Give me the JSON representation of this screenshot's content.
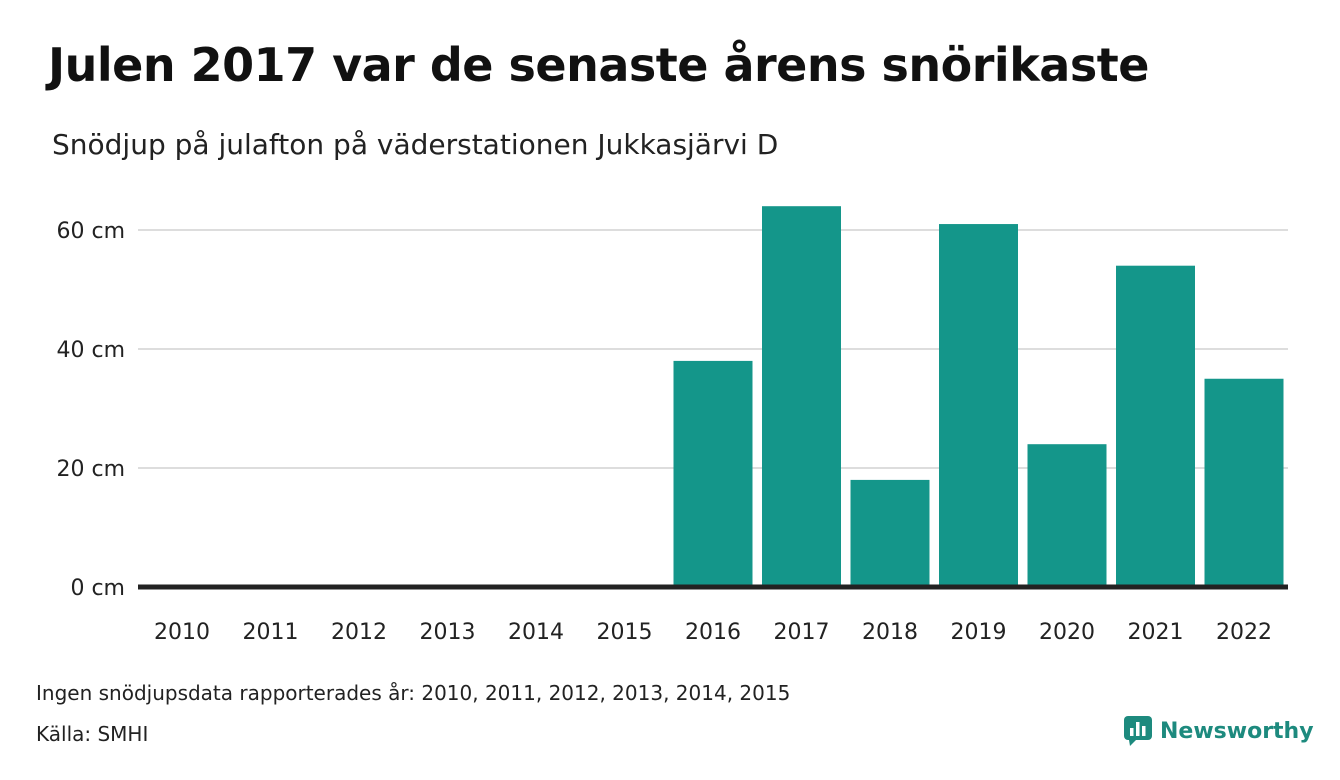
{
  "header": {
    "title": "Julen 2017 var de senaste årens snörikaste",
    "subtitle": "Snödjup på julafton på väderstationen Jukkasjärvi D"
  },
  "footer": {
    "note": "Ingen snödjupsdata rapporterades år: 2010, 2011, 2012, 2013, 2014, 2015",
    "source": "Källa: SMHI",
    "brand": "Newsworthy",
    "brand_icon": "newsworthy-logo-icon"
  },
  "colors": {
    "bar": "#14968a",
    "baseline": "#222222",
    "grid": "#dddddd",
    "brand": "#1d8a7e"
  },
  "chart_data": {
    "type": "bar",
    "categories": [
      "2010",
      "2011",
      "2012",
      "2013",
      "2014",
      "2015",
      "2016",
      "2017",
      "2018",
      "2019",
      "2020",
      "2021",
      "2022"
    ],
    "values": [
      null,
      null,
      null,
      null,
      null,
      null,
      38,
      64,
      18,
      61,
      24,
      54,
      35
    ],
    "ylim": [
      0,
      64
    ],
    "yticks": [
      0,
      20,
      40,
      60
    ],
    "ytick_labels": [
      "0 cm",
      "20 cm",
      "40 cm",
      "60 cm"
    ],
    "grid": true,
    "legend": "none"
  }
}
